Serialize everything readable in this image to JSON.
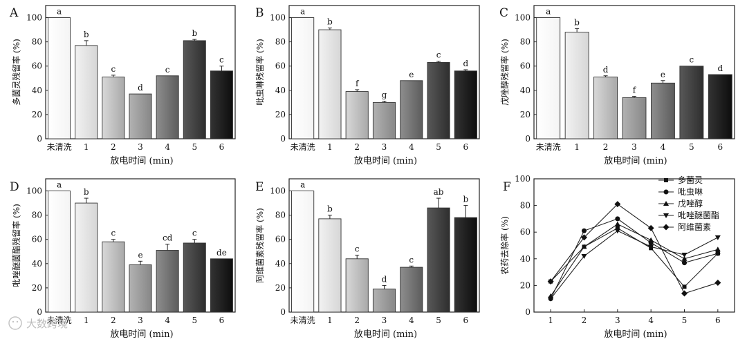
{
  "figure_labels": [
    "A",
    "B",
    "C",
    "D",
    "E",
    "F"
  ],
  "watermark": "大数跨境",
  "chart_data": [
    {
      "panel": "A",
      "type": "bar",
      "categories": [
        "未清洗",
        "1",
        "2",
        "3",
        "4",
        "5",
        "6"
      ],
      "values": [
        100,
        77,
        51,
        37,
        52,
        81,
        56
      ],
      "errors": [
        0,
        4,
        1.5,
        0,
        0,
        1,
        4
      ],
      "letters": [
        "a",
        "b",
        "c",
        "d",
        "c",
        "b",
        "c"
      ],
      "ylabel": "多菌灵残留率 (%)",
      "xlabel": "放电时间 (min)",
      "ylim": [
        0,
        110
      ],
      "yticks": [
        0,
        20,
        40,
        60,
        80,
        100
      ]
    },
    {
      "panel": "B",
      "type": "bar",
      "categories": [
        "未清洗",
        "1",
        "2",
        "3",
        "4",
        "5",
        "6"
      ],
      "values": [
        100,
        90,
        39,
        30,
        48,
        63,
        56
      ],
      "errors": [
        0,
        1.5,
        1.5,
        1,
        0,
        1,
        1
      ],
      "letters": [
        "a",
        "b",
        "f",
        "g",
        "e",
        "c",
        "d"
      ],
      "ylabel": "吡虫啉残留率 (%)",
      "xlabel": "放电时间 (min)",
      "ylim": [
        0,
        110
      ],
      "yticks": [
        0,
        20,
        40,
        60,
        80,
        100
      ]
    },
    {
      "panel": "C",
      "type": "bar",
      "categories": [
        "未清洗",
        "1",
        "2",
        "3",
        "4",
        "5",
        "6"
      ],
      "values": [
        100,
        88,
        51,
        34,
        46,
        60,
        53
      ],
      "errors": [
        0,
        3,
        1,
        1,
        2,
        0,
        0
      ],
      "letters": [
        "a",
        "b",
        "d",
        "f",
        "e",
        "c",
        "d"
      ],
      "ylabel": "戊唑醇残留率 (%)",
      "xlabel": "放电时间 (min)",
      "ylim": [
        0,
        110
      ],
      "yticks": [
        0,
        20,
        40,
        60,
        80,
        100
      ]
    },
    {
      "panel": "D",
      "type": "bar",
      "categories": [
        "未清洗",
        "1",
        "2",
        "3",
        "4",
        "5",
        "6"
      ],
      "values": [
        100,
        90,
        58,
        39,
        51,
        57,
        44
      ],
      "errors": [
        0,
        4,
        2,
        3,
        5,
        3,
        0
      ],
      "letters": [
        "a",
        "b",
        "c",
        "e",
        "cd",
        "c",
        "de"
      ],
      "ylabel": "吡唑醚菌酯残留率 (%)",
      "xlabel": "放电时间 (min)",
      "ylim": [
        0,
        110
      ],
      "yticks": [
        0,
        20,
        40,
        60,
        80,
        100
      ]
    },
    {
      "panel": "E",
      "type": "bar",
      "categories": [
        "未清洗",
        "1",
        "2",
        "3",
        "4",
        "5",
        "6"
      ],
      "values": [
        100,
        77,
        44,
        19,
        37,
        86,
        78
      ],
      "errors": [
        0,
        3,
        3,
        3,
        1,
        8,
        10
      ],
      "letters": [
        "a",
        "b",
        "c",
        "d",
        "c",
        "ab",
        "b"
      ],
      "ylabel": "阿维菌素残留率 (%)",
      "xlabel": "放电时间 (min)",
      "ylim": [
        0,
        110
      ],
      "yticks": [
        0,
        20,
        40,
        60,
        80,
        100
      ]
    },
    {
      "panel": "F",
      "type": "line",
      "x": [
        1,
        2,
        3,
        4,
        5,
        6
      ],
      "series": [
        {
          "name": "多菌灵",
          "marker": "square",
          "values": [
            23,
            49,
            63,
            48,
            19,
            44
          ]
        },
        {
          "name": "吡虫啉",
          "marker": "circle",
          "values": [
            10,
            61,
            70,
            52,
            37,
            44
          ]
        },
        {
          "name": "戊唑醇",
          "marker": "triangle-up",
          "values": [
            12,
            49,
            66,
            54,
            40,
            47
          ]
        },
        {
          "name": "吡唑醚菌酯",
          "marker": "triangle-down",
          "values": [
            10,
            42,
            61,
            49,
            43,
            56
          ]
        },
        {
          "name": "阿维菌素",
          "marker": "diamond",
          "values": [
            23,
            56,
            81,
            63,
            14,
            22
          ]
        }
      ],
      "ylabel": "农药去除率 (%)",
      "xlabel": "放电时间 (min)",
      "xlim": [
        0.5,
        6.5
      ],
      "ylim": [
        0,
        100
      ],
      "yticks": [
        0,
        20,
        40,
        60,
        80,
        100
      ],
      "legend": "top-right"
    }
  ]
}
